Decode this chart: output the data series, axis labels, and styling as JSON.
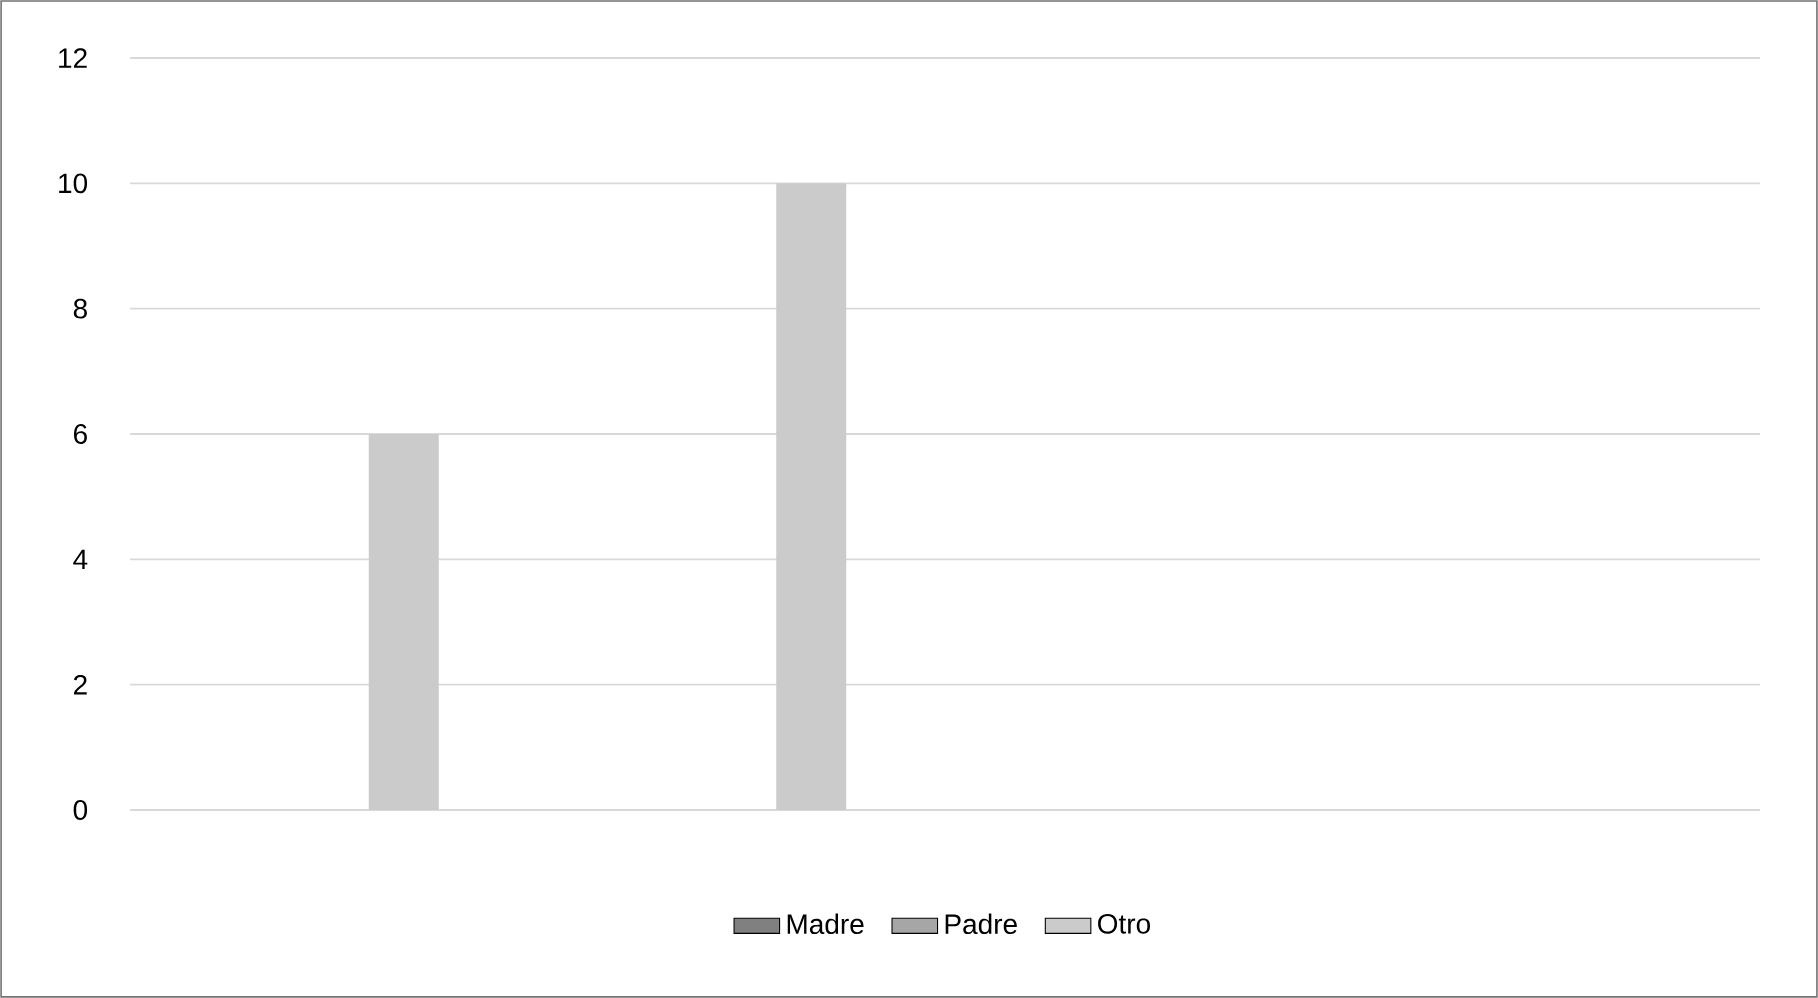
{
  "chart_data": {
    "type": "bar",
    "categories": [
      null,
      null,
      null,
      null
    ],
    "series": [
      {
        "name": "Madre",
        "color": "#808080",
        "values": [
          0,
          0,
          0,
          0
        ]
      },
      {
        "name": "Padre",
        "color": "#a6a6a6",
        "values": [
          0,
          0,
          0,
          0
        ]
      },
      {
        "name": "Otro",
        "color": "#cbcbcb",
        "values": [
          6,
          10,
          0,
          0
        ]
      }
    ],
    "ylim": [
      0,
      12
    ],
    "yticks": [
      0,
      2,
      4,
      6,
      8,
      10,
      12
    ],
    "grid": "y",
    "legend": "bottom"
  }
}
